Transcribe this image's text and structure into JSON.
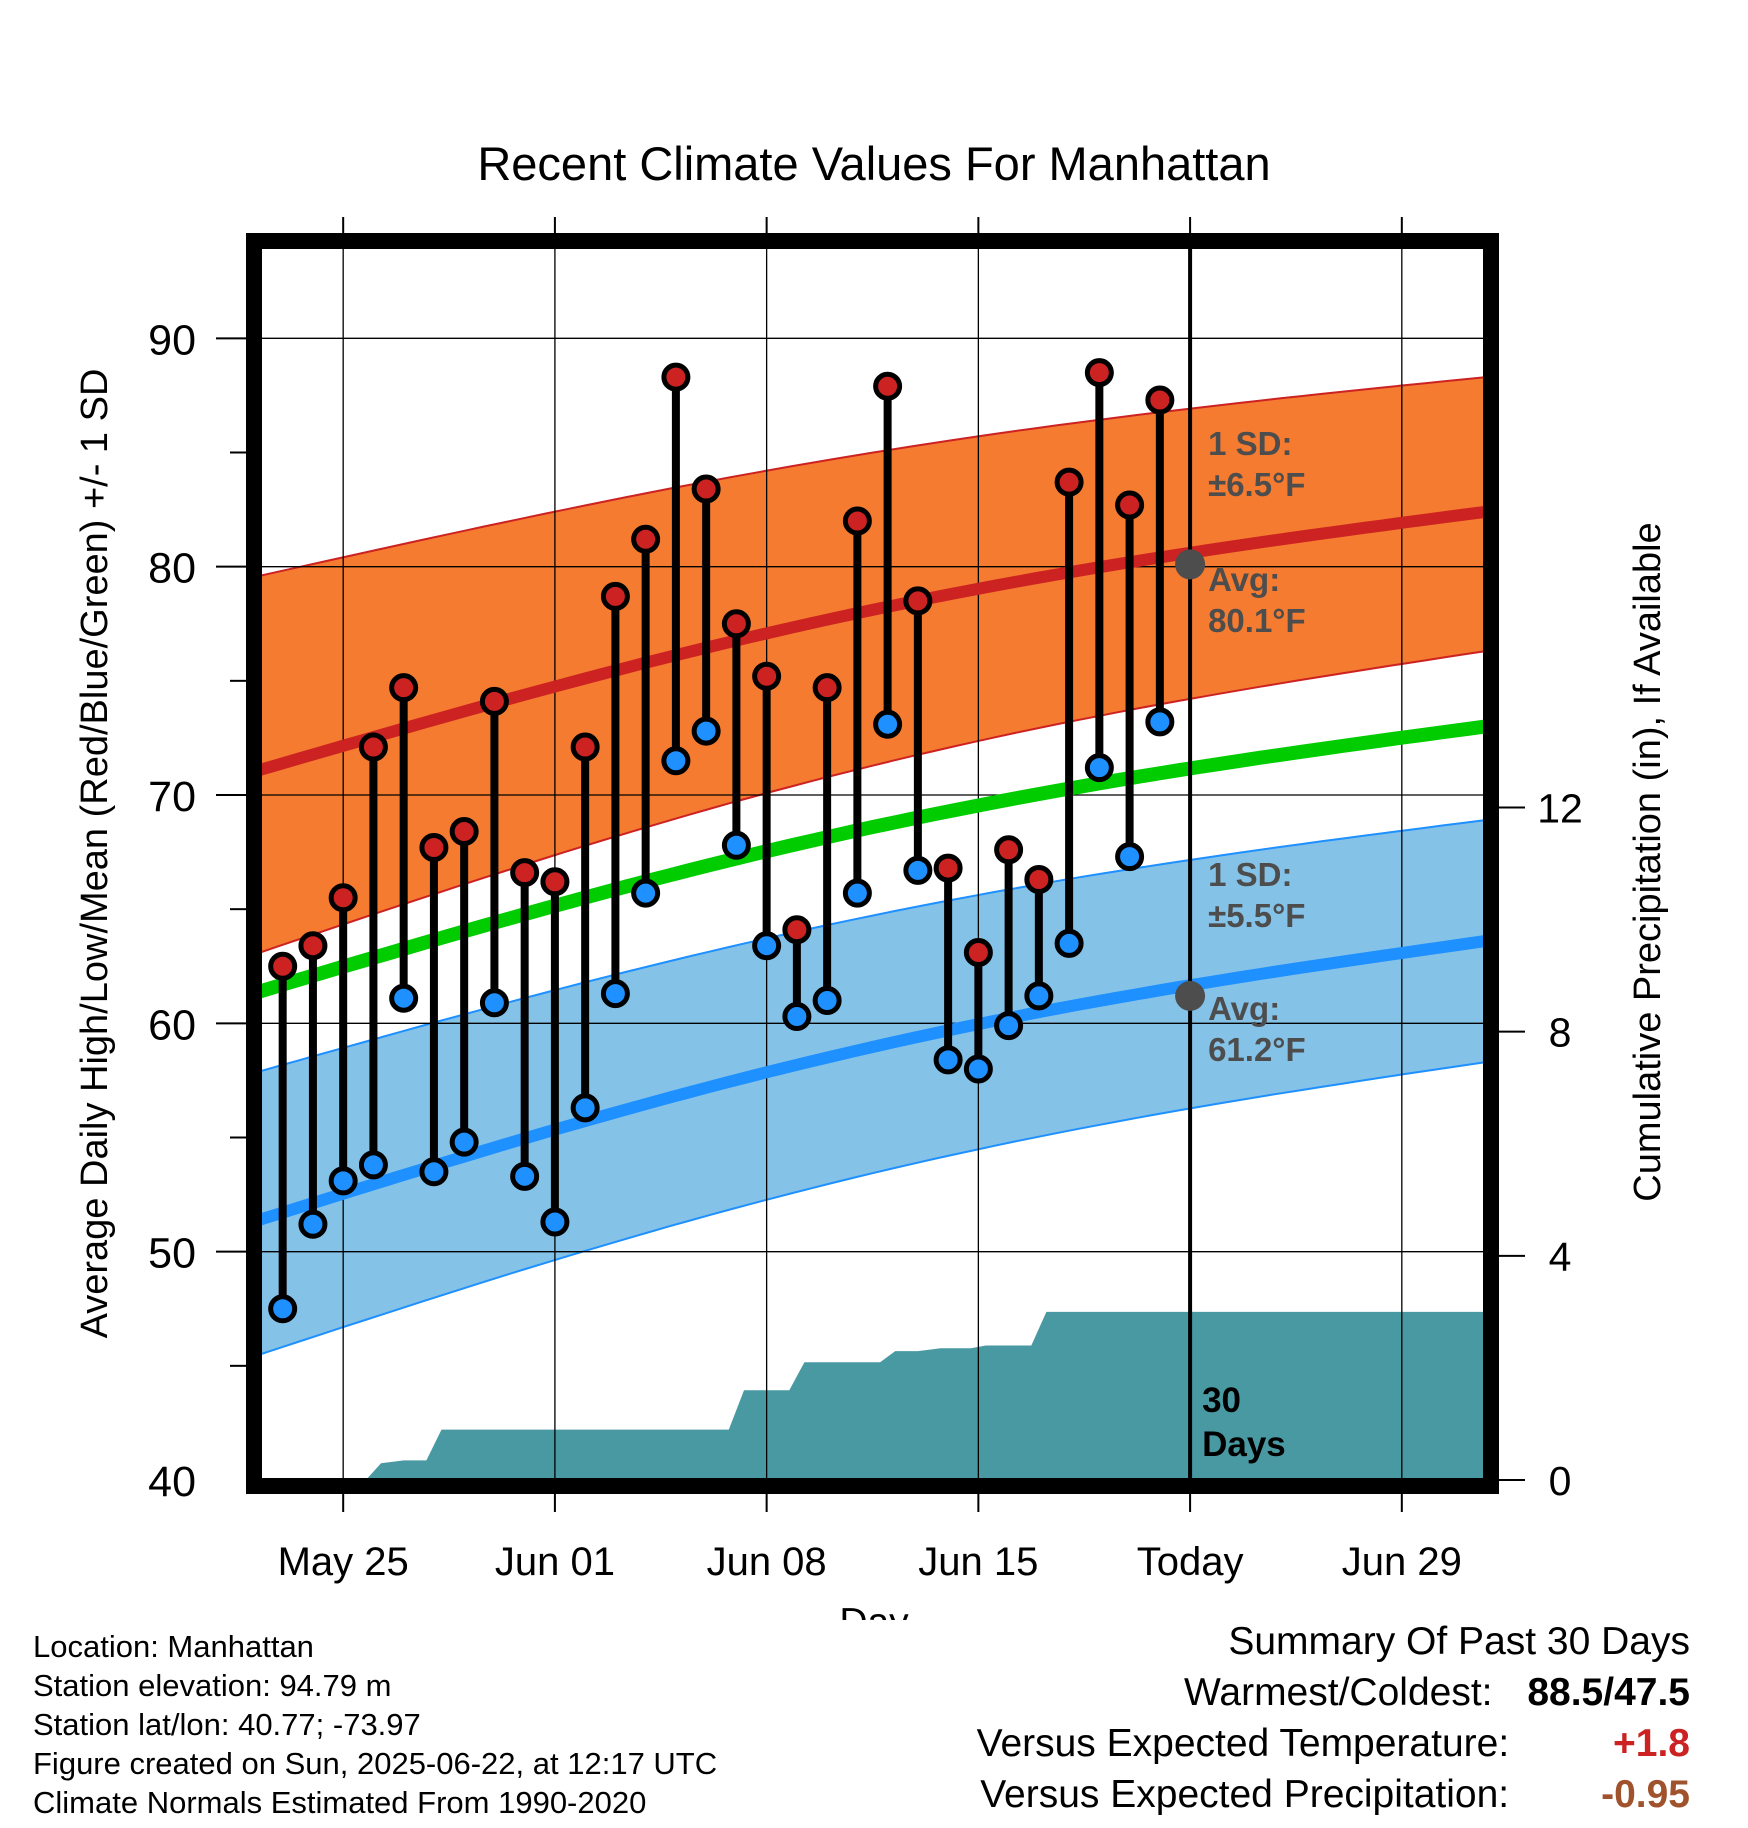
{
  "chart_data": {
    "type": "line",
    "title": "Recent Climate Values For Manhattan",
    "xlabel": "Day",
    "ylabel_left": "Average Daily High/Low/Mean (Red/Blue/Green) +/- 1 SD",
    "ylabel_right": "Cumulative Precipitation (in), If Available",
    "x_tick_labels": [
      "May 25",
      "Jun 01",
      "Jun 08",
      "Jun 15",
      "Today",
      "Jun 29"
    ],
    "x_tick_days": [
      0,
      7,
      14,
      21,
      28,
      35
    ],
    "x_range_days": [
      -2.75,
      37.75
    ],
    "ylim": [
      40,
      94
    ],
    "y_ticks": [
      40,
      50,
      60,
      70,
      80,
      90
    ],
    "precip_ylim": [
      0,
      22
    ],
    "precip_ticks": [
      0,
      4,
      8,
      12
    ],
    "grid": true,
    "today_day": 28,
    "today_label": "30 Days",
    "daily_days": [
      -2,
      -1,
      0,
      1,
      2,
      3,
      4,
      5,
      6,
      7,
      8,
      9,
      10,
      11,
      12,
      13,
      14,
      15,
      16,
      17,
      18,
      19,
      20,
      21,
      22,
      23,
      24,
      25,
      26,
      27
    ],
    "daily_highs": [
      62.5,
      63.4,
      65.5,
      72.1,
      74.7,
      67.7,
      68.4,
      74.1,
      66.6,
      66.2,
      72.1,
      78.7,
      81.2,
      88.3,
      83.4,
      77.5,
      75.2,
      64.1,
      74.7,
      82.0,
      87.9,
      78.5,
      66.8,
      63.1,
      67.6,
      66.3,
      83.7,
      88.5,
      82.7,
      87.3
    ],
    "daily_lows": [
      47.5,
      51.2,
      53.1,
      53.8,
      61.1,
      53.5,
      54.8,
      60.9,
      53.3,
      51.3,
      56.3,
      61.3,
      65.7,
      71.5,
      72.8,
      67.8,
      63.4,
      60.3,
      61.0,
      65.7,
      73.1,
      66.7,
      58.4,
      58.0,
      59.9,
      61.2,
      63.5,
      71.2,
      67.3,
      73.2
    ],
    "normal_days": [
      -2.75,
      37.75
    ],
    "normal_high": [
      71.1,
      82.4
    ],
    "normal_high_sd": 6.5,
    "normal_high_band_upper": [
      79.6,
      88.3
    ],
    "normal_high_band_lower": [
      63.1,
      76.3
    ],
    "normal_mean": [
      61.4,
      73.0
    ],
    "normal_low": [
      51.4,
      63.6
    ],
    "normal_low_sd": 5.5,
    "normal_low_band_upper": [
      57.9,
      68.9
    ],
    "normal_low_band_lower": [
      45.5,
      58.3
    ],
    "precip_steps": [
      [
        -2.75,
        0.0
      ],
      [
        0.75,
        0.0
      ],
      [
        1.25,
        0.3
      ],
      [
        2.0,
        0.35
      ],
      [
        2.75,
        0.35
      ],
      [
        3.25,
        0.9
      ],
      [
        4.0,
        0.9
      ],
      [
        5.75,
        0.9
      ],
      [
        6.25,
        0.9
      ],
      [
        12.75,
        0.9
      ],
      [
        13.25,
        1.6
      ],
      [
        14.0,
        1.6
      ],
      [
        14.75,
        1.6
      ],
      [
        15.25,
        2.1
      ],
      [
        16.0,
        2.1
      ],
      [
        17.75,
        2.1
      ],
      [
        18.25,
        2.3
      ],
      [
        19.0,
        2.3
      ],
      [
        19.75,
        2.35
      ],
      [
        20.75,
        2.35
      ],
      [
        21.25,
        2.4
      ],
      [
        22.75,
        2.4
      ],
      [
        23.25,
        3.0
      ],
      [
        37.75,
        3.0
      ]
    ],
    "series": [
      {
        "name": "High",
        "color": "#cc2222"
      },
      {
        "name": "Low",
        "color": "#1e90ff"
      },
      {
        "name": "Mean",
        "color": "#00cc00"
      }
    ],
    "annotations": {
      "high_sd": "1 SD:",
      "high_sd_value": "±6.5°F",
      "high_avg": "Avg:",
      "high_avg_value": "80.1°F",
      "low_sd": "1 SD:",
      "low_sd_value": "±5.5°F",
      "low_avg": "Avg:",
      "low_avg_value": "61.2°F",
      "today_high_avg": 80.1,
      "today_low_avg": 61.2
    },
    "colors": {
      "high_band": "#f47b30",
      "high_line": "#cc2222",
      "low_band": "#85c2e8",
      "low_line": "#1e90ff",
      "mean_line": "#00cc00",
      "precip": "#4999a2",
      "marker_high": "#cc2222",
      "marker_low": "#1e90ff",
      "annotation": "#4d4d4d"
    }
  },
  "info": {
    "location": "Location: Manhattan",
    "elevation": "Station elevation: 94.79 m",
    "latlon": "Station lat/lon: 40.77; -73.97",
    "created": "Figure created on Sun, 2025-06-22, at 12:17 UTC",
    "normals": "Climate Normals Estimated From 1990-2020"
  },
  "summary": {
    "title": "Summary Of Past 30 Days",
    "warm_cold_label": "Warmest/Coldest:",
    "warm_cold_value": "88.5/47.5",
    "temp_label": "Versus Expected Temperature:",
    "temp_value": "+1.8",
    "temp_color": "#cc2222",
    "precip_label": "Versus Expected Precipitation:",
    "precip_value": "-0.95",
    "precip_color": "#a0522d"
  }
}
